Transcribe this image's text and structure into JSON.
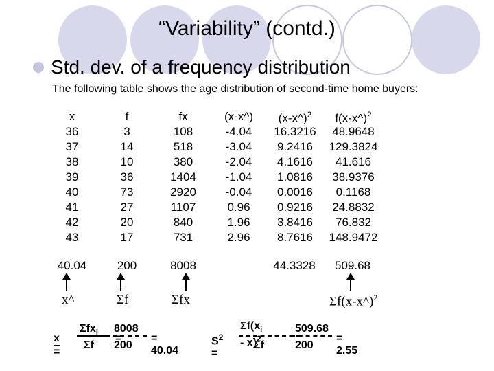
{
  "title": "“Variability” (contd.)",
  "bullet": "Std. dev. of a frequency distribution",
  "subtitle": "The following table shows the age distribution of second-time home buyers:",
  "table": {
    "headers": [
      "x",
      "f",
      "fx",
      "(x-x^)",
      "(x-x^)2",
      "f(x-x^)2"
    ],
    "rows": [
      [
        "36",
        "3",
        "108",
        "-4.04",
        "16.3216",
        "48.9648"
      ],
      [
        "37",
        "14",
        "518",
        "-3.04",
        "9.2416",
        "129.3824"
      ],
      [
        "38",
        "10",
        "380",
        "-2.04",
        "4.1616",
        "41.616"
      ],
      [
        "39",
        "36",
        "1404",
        "-1.04",
        "1.0816",
        "38.9376"
      ],
      [
        "40",
        "73",
        "2920",
        "-0.04",
        "0.0016",
        "0.1168"
      ],
      [
        "41",
        "27",
        "1107",
        "0.96",
        "0.9216",
        "24.8832"
      ],
      [
        "42",
        "20",
        "840",
        "1.96",
        "3.8416",
        "76.832"
      ],
      [
        "43",
        "17",
        "731",
        "2.96",
        "8.7616",
        "148.9472"
      ]
    ]
  },
  "totals": {
    "x": "40.04",
    "f": "200",
    "fx": "8008",
    "sq": "44.3328",
    "fsq": "509.68"
  },
  "symbols": {
    "xhat": "x^",
    "sumf": "Σf",
    "sumfx": "Σfx",
    "sumfsq": "Σf(x-x^)2"
  },
  "formula1": {
    "lhs": "x =",
    "num": "Σfxi",
    "den": "Σf",
    "num2": "8008",
    "den2": "200",
    "result": "= 40.04"
  },
  "formula2": {
    "lhs": "S2 =",
    "num": "Σf(xi - x)2",
    "den": "Σf",
    "num2": "509.68",
    "den2": "200",
    "result": "= 2.55"
  }
}
